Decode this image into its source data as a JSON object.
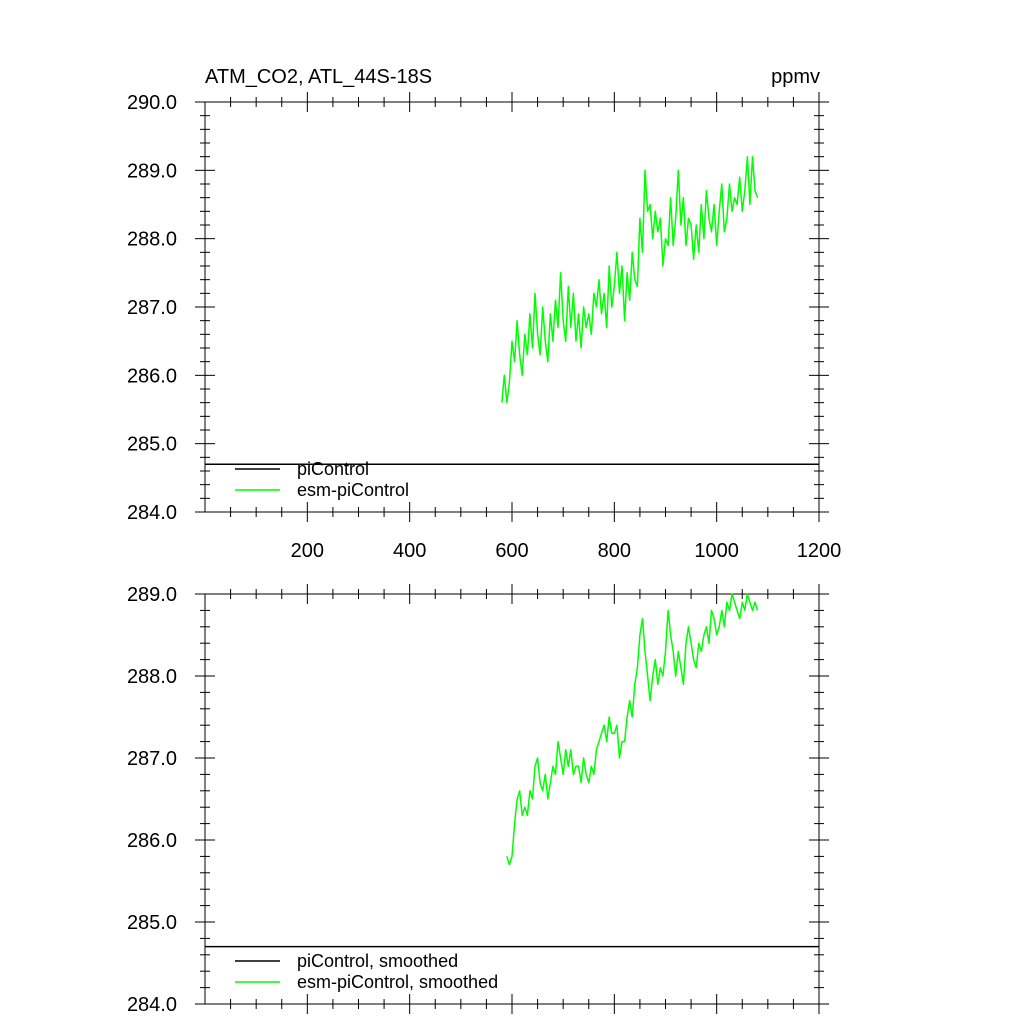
{
  "chart_data": [
    {
      "type": "line",
      "title_left": "ATM_CO2, ATL_44S-18S",
      "title_right": "ppmv",
      "xlim": [
        0,
        1200
      ],
      "ylim": [
        284.0,
        290.0
      ],
      "x_ticks": [
        200,
        400,
        600,
        800,
        1000,
        1200
      ],
      "x_tick_labels": [
        "200",
        "400",
        "600",
        "800",
        "1000",
        "1200"
      ],
      "y_ticks": [
        284.0,
        285.0,
        286.0,
        287.0,
        288.0,
        289.0,
        290.0
      ],
      "y_tick_labels": [
        "284.0",
        "285.0",
        "286.0",
        "287.0",
        "288.0",
        "289.0",
        "290.0"
      ],
      "legend_position": "bottom-left",
      "series": [
        {
          "name": "piControl",
          "color": "#000000",
          "x": [
            0,
            1200
          ],
          "y": [
            284.7,
            284.7
          ]
        },
        {
          "name": "esm-piControl",
          "color": "#00ff00",
          "x": [
            580,
            585,
            590,
            595,
            600,
            605,
            610,
            615,
            620,
            625,
            630,
            635,
            640,
            645,
            650,
            655,
            660,
            665,
            670,
            675,
            680,
            685,
            690,
            695,
            700,
            705,
            710,
            715,
            720,
            725,
            730,
            735,
            740,
            745,
            750,
            755,
            760,
            765,
            770,
            775,
            780,
            785,
            790,
            795,
            800,
            805,
            810,
            815,
            820,
            825,
            830,
            835,
            840,
            845,
            850,
            855,
            860,
            865,
            870,
            875,
            880,
            885,
            890,
            895,
            900,
            905,
            910,
            915,
            920,
            925,
            930,
            935,
            940,
            945,
            950,
            955,
            960,
            965,
            970,
            975,
            980,
            985,
            990,
            995,
            1000,
            1005,
            1010,
            1015,
            1020,
            1025,
            1030,
            1035,
            1040,
            1045,
            1050,
            1055,
            1060,
            1065,
            1070,
            1075,
            1080
          ],
          "y": [
            285.6,
            286.0,
            285.6,
            285.9,
            286.5,
            286.2,
            286.8,
            286.3,
            286.0,
            286.6,
            286.3,
            286.9,
            286.4,
            287.2,
            286.6,
            286.3,
            287.0,
            286.5,
            286.2,
            286.9,
            286.5,
            287.1,
            286.7,
            287.5,
            286.8,
            286.5,
            287.3,
            286.7,
            287.2,
            286.5,
            286.9,
            286.4,
            287.0,
            286.7,
            286.9,
            286.6,
            287.2,
            287.0,
            287.4,
            286.9,
            287.2,
            286.7,
            287.6,
            287.0,
            287.3,
            287.8,
            287.2,
            287.6,
            286.8,
            287.5,
            287.1,
            287.8,
            287.4,
            287.3,
            288.3,
            287.8,
            289.0,
            288.4,
            288.5,
            288.0,
            288.4,
            288.1,
            288.3,
            287.6,
            288.0,
            287.9,
            288.6,
            287.9,
            288.3,
            289.0,
            288.2,
            288.6,
            287.9,
            288.3,
            288.2,
            287.7,
            288.2,
            287.8,
            288.5,
            288.0,
            288.7,
            288.3,
            288.1,
            288.5,
            287.9,
            288.4,
            288.8,
            288.1,
            288.3,
            288.8,
            288.4,
            288.6,
            288.5,
            288.9,
            288.4,
            288.7,
            289.2,
            288.5,
            289.2,
            288.7,
            288.6
          ]
        }
      ]
    },
    {
      "type": "line",
      "xlim": [
        0,
        1200
      ],
      "ylim": [
        284.0,
        289.0
      ],
      "y_ticks": [
        284.0,
        285.0,
        286.0,
        287.0,
        288.0,
        289.0
      ],
      "y_tick_labels": [
        "284.0",
        "285.0",
        "286.0",
        "287.0",
        "288.0",
        "289.0"
      ],
      "legend_position": "bottom-left",
      "series": [
        {
          "name": "piControl, smoothed",
          "color": "#000000",
          "x": [
            0,
            1200
          ],
          "y": [
            284.7,
            284.7
          ]
        },
        {
          "name": "esm-piControl, smoothed",
          "color": "#00ff00",
          "x": [
            590,
            595,
            600,
            605,
            610,
            615,
            620,
            625,
            630,
            635,
            640,
            645,
            650,
            655,
            660,
            665,
            670,
            675,
            680,
            685,
            690,
            695,
            700,
            705,
            710,
            715,
            720,
            725,
            730,
            735,
            740,
            745,
            750,
            755,
            760,
            765,
            770,
            775,
            780,
            785,
            790,
            795,
            800,
            805,
            810,
            815,
            820,
            825,
            830,
            835,
            840,
            845,
            850,
            855,
            860,
            865,
            870,
            875,
            880,
            885,
            890,
            895,
            900,
            905,
            910,
            915,
            920,
            925,
            930,
            935,
            940,
            945,
            950,
            955,
            960,
            965,
            970,
            975,
            980,
            985,
            990,
            995,
            1000,
            1005,
            1010,
            1015,
            1020,
            1025,
            1030,
            1035,
            1040,
            1045,
            1050,
            1055,
            1060,
            1065,
            1070,
            1075,
            1080
          ],
          "y": [
            285.8,
            285.7,
            285.8,
            286.2,
            286.5,
            286.6,
            286.3,
            286.4,
            286.3,
            286.6,
            286.5,
            286.9,
            287.0,
            286.7,
            286.6,
            286.8,
            286.5,
            286.7,
            286.9,
            286.8,
            287.2,
            287.0,
            286.8,
            287.1,
            286.9,
            287.1,
            286.8,
            286.9,
            286.9,
            286.7,
            287.0,
            286.8,
            286.7,
            286.9,
            286.8,
            287.1,
            287.2,
            287.3,
            287.4,
            287.2,
            287.5,
            287.3,
            287.3,
            287.4,
            287.0,
            287.2,
            287.2,
            287.5,
            287.7,
            287.5,
            287.9,
            288.1,
            288.5,
            288.7,
            288.3,
            288.0,
            287.7,
            288.0,
            288.2,
            287.9,
            288.1,
            288.0,
            288.3,
            288.8,
            288.5,
            288.3,
            288.0,
            288.3,
            288.1,
            287.9,
            288.4,
            288.6,
            288.4,
            288.2,
            288.1,
            288.4,
            288.3,
            288.5,
            288.6,
            288.4,
            288.8,
            288.7,
            288.5,
            288.6,
            288.8,
            288.6,
            288.9,
            288.8,
            289.0,
            288.9,
            288.8,
            288.7,
            288.9,
            288.8,
            289.0,
            288.9,
            288.8,
            288.9,
            288.8
          ]
        }
      ]
    }
  ]
}
